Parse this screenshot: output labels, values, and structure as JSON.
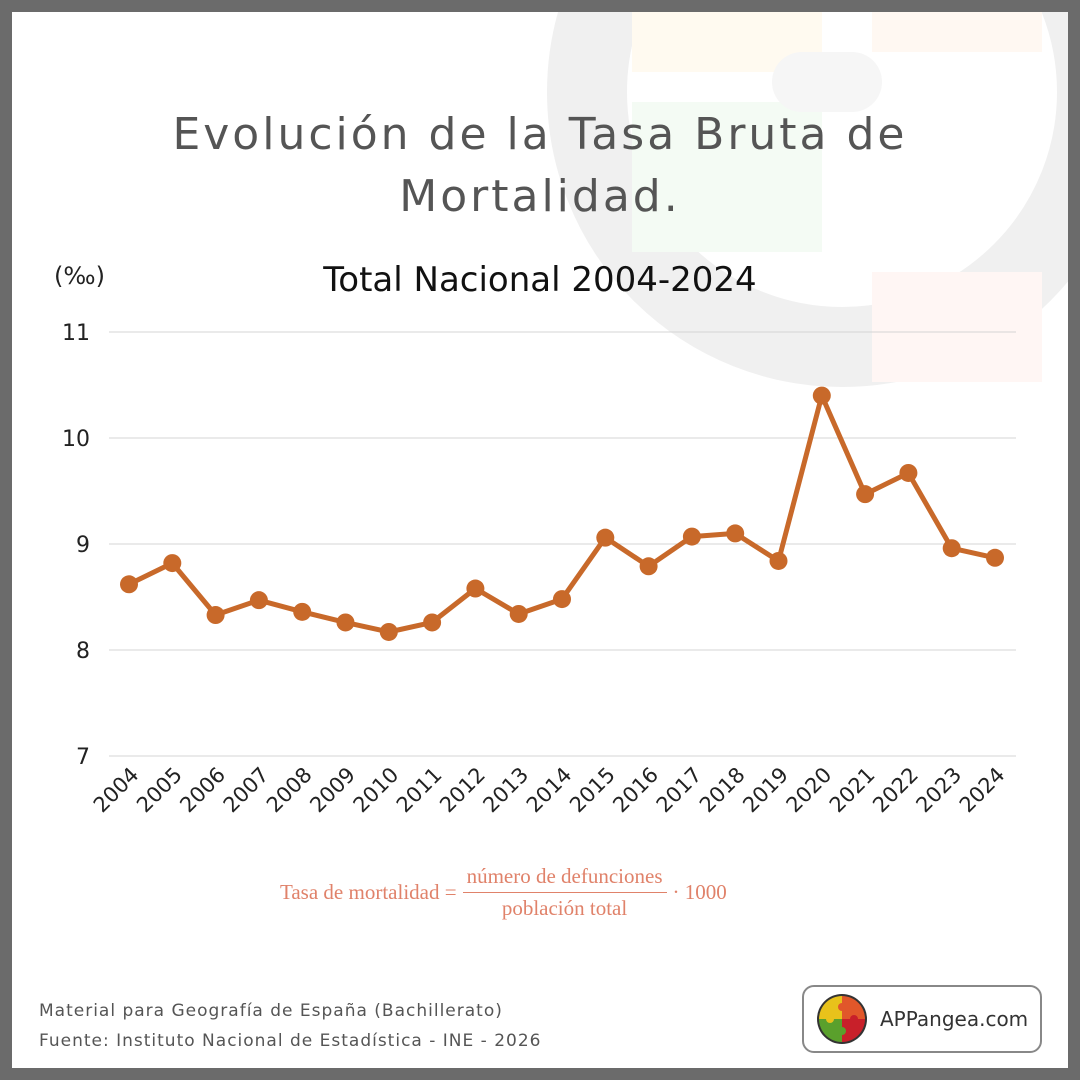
{
  "title_line1": "Evolución de la Tasa Bruta de",
  "title_line2": "Mortalidad.",
  "chart_data": {
    "type": "line",
    "title": "Total Nacional 2004-2024",
    "ylabel": "(‰)",
    "xlabel": "",
    "x": [
      "2004",
      "2005",
      "2006",
      "2007",
      "2008",
      "2009",
      "2010",
      "2011",
      "2012",
      "2013",
      "2014",
      "2015",
      "2016",
      "2017",
      "2018",
      "2019",
      "2020",
      "2021",
      "2022",
      "2023",
      "2024"
    ],
    "series": [
      {
        "values": [
          8.62,
          8.82,
          8.33,
          8.47,
          8.36,
          8.26,
          8.17,
          8.26,
          8.58,
          8.34,
          8.48,
          9.06,
          8.79,
          9.07,
          9.1,
          8.84,
          10.4,
          9.47,
          9.67,
          8.96,
          8.87
        ]
      }
    ],
    "ylim": [
      7,
      11
    ],
    "yticks": [
      "7",
      "8",
      "9",
      "10",
      "11"
    ],
    "grid": true,
    "line_color": "#c8692a"
  },
  "formula": {
    "lhs": "Tasa de mortalidad =",
    "numerator": "número de defunciones",
    "denominator": "población total",
    "factor": "· 1000"
  },
  "footer": {
    "line1": "Material para Geografía de España (Bachillerato)",
    "line2": "Fuente: Instituto Nacional de Estadística - INE - 2026"
  },
  "brand": {
    "name": "APPangea.com",
    "colors": [
      "#e8c21b",
      "#e1572a",
      "#5aa02c",
      "#c8202a"
    ]
  }
}
